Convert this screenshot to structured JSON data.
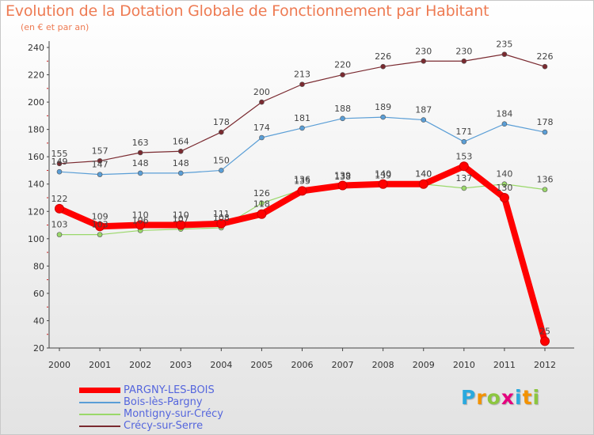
{
  "title": "Evolution de la Dotation Globale de Fonctionnement par Habitant",
  "subtitle": "(en € et par an)",
  "logo": {
    "letters": [
      "P",
      "r",
      "o",
      "x",
      "i",
      "t",
      "i"
    ],
    "colors": [
      "#2aa9de",
      "#f39200",
      "#8cc63f",
      "#e5007e",
      "#2aa9de",
      "#f39200",
      "#8cc63f"
    ]
  },
  "chart_data": {
    "type": "line",
    "title": "Evolution de la Dotation Globale de Fonctionnement par Habitant",
    "subtitle": "(en € et par an)",
    "x": [
      "2000",
      "2001",
      "2002",
      "2003",
      "2004",
      "2005",
      "2006",
      "2007",
      "2008",
      "2009",
      "2010",
      "2011",
      "2012"
    ],
    "ylim": [
      20,
      240
    ],
    "yticks": [
      "20",
      "40",
      "60",
      "80",
      "100",
      "120",
      "140",
      "160",
      "180",
      "200",
      "220",
      "240"
    ],
    "grid": false,
    "legend_position": "bottom-left",
    "series": [
      {
        "name": "Crécy-sur-Serre",
        "color": "#7a2a30",
        "values": [
          155,
          157,
          163,
          164,
          178,
          200,
          213,
          220,
          226,
          230,
          230,
          235,
          226
        ],
        "labels": [
          "155",
          "157",
          "163",
          "164",
          "178",
          "200",
          "213",
          "220",
          "226",
          "230",
          "230",
          "235",
          "226"
        ]
      },
      {
        "name": "Bois-lès-Pargny",
        "color": "#5a9ed6",
        "values": [
          149,
          147,
          148,
          148,
          150,
          174,
          181,
          188,
          189,
          187,
          171,
          184,
          178
        ],
        "labels": [
          "149",
          "147",
          "148",
          "148",
          "150",
          "174",
          "181",
          "188",
          "189",
          "187",
          "171",
          "184",
          "178"
        ]
      },
      {
        "name": "Montigny-sur-Crécy",
        "color": "#9ad86a",
        "values": [
          103,
          103,
          106,
          107,
          108,
          126,
          136,
          138,
          139,
          140,
          137,
          140,
          136
        ],
        "labels": [
          "103",
          "103",
          "106",
          "107",
          "108",
          "126",
          "136",
          "138",
          "139",
          "140",
          "137",
          "140",
          "136"
        ]
      },
      {
        "name": "PARGNY-LES-BOIS",
        "color": "#ff0000",
        "values": [
          122,
          109,
          110,
          110,
          111,
          118,
          135,
          139,
          140,
          140,
          153,
          130,
          25
        ],
        "labels": [
          "122",
          "109",
          "110",
          "110",
          "111",
          "118",
          "135",
          "139",
          "140",
          "140",
          "153",
          "130",
          "25"
        ]
      }
    ]
  }
}
